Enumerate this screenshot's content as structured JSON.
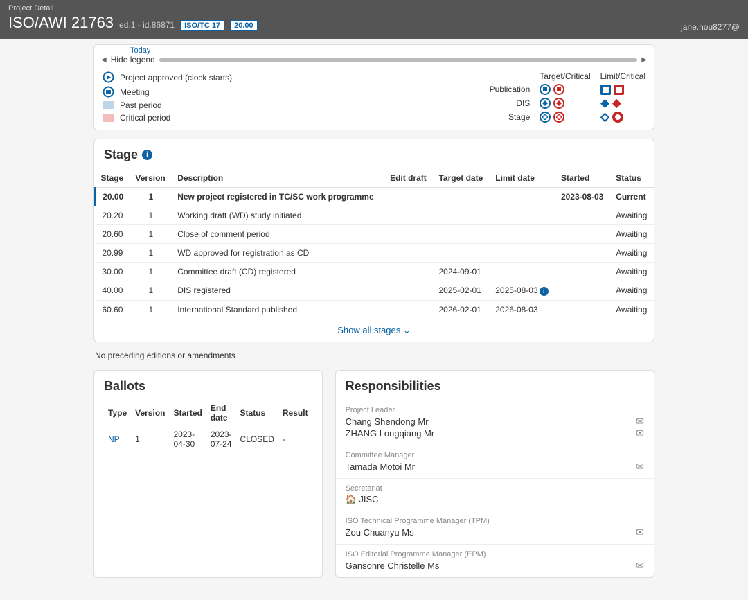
{
  "header": {
    "detailLabel": "Project Detail",
    "title": "ISO/AWI 21763",
    "sub": "ed.1 - id.86871",
    "badges": [
      "ISO/TC 17",
      "20.00"
    ],
    "user": "jane.hou8277@"
  },
  "legend": {
    "today": "Today",
    "hide": "Hide legend",
    "items": {
      "approved": "Project approved (clock starts)",
      "meeting": "Meeting",
      "past": "Past period",
      "critical": "Critical period"
    },
    "cols": {
      "tc": "Target/Critical",
      "lc": "Limit/Critical"
    },
    "rows": [
      "Publication",
      "DIS",
      "Stage"
    ],
    "colors": {
      "blue": "#0b63a6",
      "red": "#c62828",
      "past": "#bfd4e6",
      "crit": "#f3bdbd"
    }
  },
  "stage": {
    "title": "Stage",
    "headers": [
      "Stage",
      "Version",
      "Description",
      "Edit draft",
      "Target date",
      "Limit date",
      "Started",
      "Status"
    ],
    "rows": [
      {
        "stage": "20.00",
        "ver": "1",
        "desc": "New project registered in TC/SC work programme",
        "edit": "",
        "target": "",
        "limit": "",
        "started": "2023-08-03",
        "status": "Current",
        "current": true
      },
      {
        "stage": "20.20",
        "ver": "1",
        "desc": "Working draft (WD) study initiated",
        "edit": "",
        "target": "",
        "limit": "",
        "started": "",
        "status": "Awaiting"
      },
      {
        "stage": "20.60",
        "ver": "1",
        "desc": "Close of comment period",
        "edit": "",
        "target": "",
        "limit": "",
        "started": "",
        "status": "Awaiting"
      },
      {
        "stage": "20.99",
        "ver": "1",
        "desc": "WD approved for registration as CD",
        "edit": "",
        "target": "",
        "limit": "",
        "started": "",
        "status": "Awaiting"
      },
      {
        "stage": "30.00",
        "ver": "1",
        "desc": "Committee draft (CD) registered",
        "edit": "",
        "target": "2024-09-01",
        "limit": "",
        "started": "",
        "status": "Awaiting"
      },
      {
        "stage": "40.00",
        "ver": "1",
        "desc": "DIS registered",
        "edit": "",
        "target": "2025-02-01",
        "limit": "2025-08-03",
        "started": "",
        "status": "Awaiting",
        "limitInfo": true
      },
      {
        "stage": "60.60",
        "ver": "1",
        "desc": "International Standard published",
        "edit": "",
        "target": "2026-02-01",
        "limit": "2026-08-03",
        "started": "",
        "status": "Awaiting"
      }
    ],
    "showAll": "Show all stages",
    "noPrev": "No preceding editions or amendments"
  },
  "ballots": {
    "title": "Ballots",
    "headers": [
      "Type",
      "Version",
      "Started",
      "End date",
      "Status",
      "Result"
    ],
    "row": {
      "type": "NP",
      "ver": "1",
      "started": "2023-04-30",
      "end": "2023-07-24",
      "status": "CLOSED",
      "result": "-"
    }
  },
  "resp": {
    "title": "Responsibilities",
    "items": [
      {
        "label": "Project Leader",
        "names": [
          "Chang Shendong Mr",
          "ZHANG Longqiang Mr"
        ],
        "mail": true
      },
      {
        "label": "Committee Manager",
        "names": [
          "Tamada Motoi Mr"
        ],
        "mail": true
      },
      {
        "label": "Secretariat",
        "names": [
          "JISC"
        ],
        "home": true
      },
      {
        "label": "ISO Technical Programme Manager (TPM)",
        "names": [
          "Zou Chuanyu Ms"
        ],
        "mail": true
      },
      {
        "label": "ISO Editorial Programme Manager (EPM)",
        "names": [
          "Gansonre Christelle Ms"
        ],
        "mail": true
      }
    ]
  }
}
